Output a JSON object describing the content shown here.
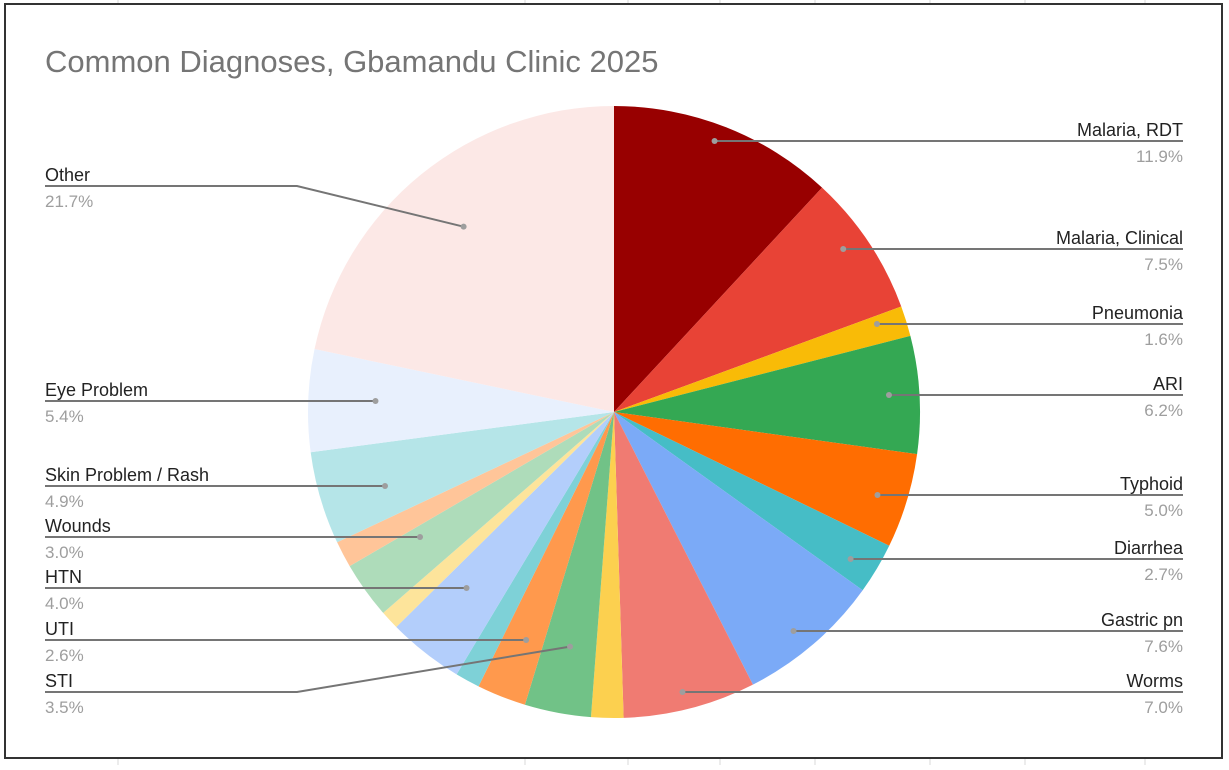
{
  "chart_data": {
    "type": "pie",
    "title": "Common Diagnoses, Gbamandu Clinic 2025",
    "categories": [
      "Malaria, RDT",
      "Malaria, Clinical",
      "Pneumonia",
      "ARI",
      "Typhoid",
      "Diarrhea",
      "Gastric pn",
      "Worms",
      null,
      "STI",
      "UTI",
      null,
      "HTN",
      null,
      "Wounds",
      null,
      "Skin Problem / Rash",
      "Eye Problem",
      "Other"
    ],
    "values": [
      11.9,
      7.5,
      1.6,
      6.2,
      5.0,
      2.7,
      7.6,
      7.0,
      1.7,
      3.5,
      2.6,
      1.3,
      4.0,
      1.0,
      3.0,
      1.4,
      4.9,
      5.4,
      21.7
    ],
    "value_labels": [
      "11.9%",
      "7.5%",
      "1.6%",
      "6.2%",
      "5.0%",
      "2.7%",
      "7.6%",
      "7.0%",
      null,
      "3.5%",
      "2.6%",
      null,
      "4.0%",
      null,
      "3.0%",
      null,
      "4.9%",
      "5.4%",
      "21.7%"
    ],
    "colors": [
      "#980000",
      "#e84336",
      "#f9bb07",
      "#34a853",
      "#ff6d01",
      "#46bdc6",
      "#7baaf7",
      "#f07b72",
      "#fcd04f",
      "#71c287",
      "#ff994d",
      "#7ed1d7",
      "#b3cefb",
      "#fde49b",
      "#aedcba",
      "#ffc599",
      "#b5e5e8",
      "#e8f0fd",
      "#fce8e6"
    ]
  }
}
